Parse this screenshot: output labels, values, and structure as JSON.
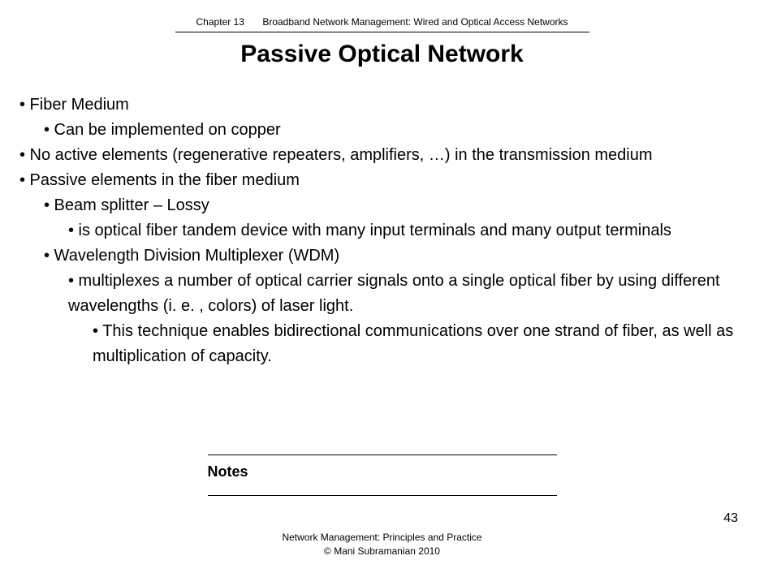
{
  "header": {
    "chapter": "Chapter 13",
    "topic": "Broadband Network Management:  Wired and Optical Access Networks"
  },
  "title": "Passive Optical Network",
  "bullets": {
    "b1": "• Fiber Medium",
    "b1a": "• Can be implemented on copper",
    "b2": "• No active elements (regenerative repeaters, amplifiers, …) in the transmission medium",
    "b3": "• Passive elements in the fiber medium",
    "b3a": "• Beam splitter – Lossy",
    "b3a1": "•  is optical fiber tandem device with many input terminals and many output terminals",
    "b3b": "• Wavelength Division Multiplexer (WDM)",
    "b3b1": "• multiplexes a number of optical carrier signals onto a single optical fiber by using different wavelengths (i. e. , colors) of laser light.",
    "b3b1a": "• This technique enables bidirectional communications over one strand of fiber, as well as multiplication of capacity."
  },
  "notes_label": "Notes",
  "footer": {
    "line1": "Network Management: Principles and Practice",
    "line2": "©  Mani Subramanian 2010"
  },
  "page_number": "43",
  "styles": {
    "background_color": "#ffffff",
    "text_color": "#000000",
    "title_fontsize": 30,
    "body_fontsize": 20,
    "header_fontsize": 12,
    "footer_fontsize": 12,
    "notes_fontsize": 18,
    "rule_color": "#000000"
  }
}
